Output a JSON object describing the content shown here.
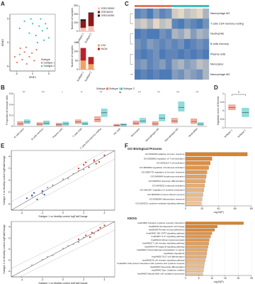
{
  "chart_data": [
    {
      "type": "scatter",
      "panel": "A",
      "xlabel": "tSNE1",
      "ylabel": "tSNE2",
      "legend_title": "Subtype",
      "xlim": [
        -7,
        7
      ],
      "ylim": [
        -6,
        6
      ],
      "xticks": [
        -5,
        0,
        5
      ],
      "yticks": [
        -5,
        0,
        5
      ],
      "series": [
        {
          "name": "Subtype 1",
          "color": "#e8735a",
          "x": [
            -5.5,
            -4.8,
            -4,
            -3.2,
            -2.5,
            -1.8,
            -1,
            -0.2,
            0.5,
            1.2,
            -3.8,
            -2
          ],
          "y": [
            -3,
            -4.2,
            -2.5,
            -3.6,
            -2,
            -4.5,
            -3,
            -2.2,
            -3.8,
            -1.5,
            -1.2,
            -1
          ]
        },
        {
          "name": "Subtype 2",
          "color": "#3bbfbf",
          "x": [
            -4,
            -2.5,
            -1,
            0,
            1,
            2,
            3,
            4,
            5,
            3.5,
            1.5,
            -0.5,
            2.5,
            4.5
          ],
          "y": [
            3,
            4.5,
            2,
            4,
            1.5,
            3.5,
            2.5,
            4,
            1,
            0.5,
            0,
            5,
            5,
            3
          ]
        }
      ]
    },
    {
      "type": "stacked_bar",
      "ylabel": "Number of samples",
      "categories": [
        "Subtype 1",
        "Subtype 2"
      ],
      "ylim": [
        0,
        300
      ],
      "yticks": [
        0,
        100,
        200,
        300
      ],
      "series": [
        {
          "name": "GSE135052",
          "color": "#f6c3b7",
          "values": [
            40,
            60
          ]
        },
        {
          "name": "GSE46224",
          "color": "#8b1a1a",
          "values": [
            80,
            150
          ]
        },
        {
          "name": "GSE116250",
          "color": "#1a1a1a",
          "values": [
            20,
            10
          ]
        }
      ]
    },
    {
      "type": "stacked_bar",
      "ylabel": "Number of samples",
      "categories": [
        "Subtype 1",
        "Subtype 2"
      ],
      "ylim": [
        0,
        150
      ],
      "yticks": [
        0,
        50,
        100,
        150
      ],
      "series": [
        {
          "name": "ICM",
          "color": "#f4a261",
          "values": [
            50,
            30
          ]
        },
        {
          "name": "NICM",
          "color": "#b5242a",
          "values": [
            70,
            40
          ]
        }
      ]
    },
    {
      "type": "heatmap",
      "panel": "C",
      "color_low": "#3a6fb5",
      "color_high": "#f6e3c8",
      "rows": [
        "Macrophage M2",
        "T cells CD4 memory resting",
        "Neutrophils",
        "B cells memory",
        "Plasma cells",
        "Monocytes",
        "Macrophage M0"
      ],
      "values": [
        [
          0.2,
          0.3,
          0.1,
          0.4,
          0.2,
          0.3,
          0.8,
          0.9,
          0.7,
          0.8,
          0.9,
          0.6
        ],
        [
          0.7,
          0.8,
          0.6,
          0.9,
          0.7,
          0.8,
          0.2,
          0.1,
          0.3,
          0.2,
          0.1,
          0.3
        ],
        [
          0.1,
          0.2,
          0.1,
          0.1,
          0.3,
          0.2,
          0.6,
          0.5,
          0.7,
          0.4,
          0.6,
          0.5
        ],
        [
          0.3,
          0.2,
          0.4,
          0.3,
          0.2,
          0.3,
          0.2,
          0.3,
          0.1,
          0.2,
          0.3,
          0.2
        ],
        [
          0.2,
          0.1,
          0.2,
          0.3,
          0.1,
          0.2,
          0.2,
          0.1,
          0.2,
          0.1,
          0.2,
          0.1
        ],
        [
          0.3,
          0.4,
          0.2,
          0.3,
          0.4,
          0.2,
          0.5,
          0.6,
          0.4,
          0.5,
          0.7,
          0.6
        ],
        [
          0.1,
          0.2,
          0.1,
          0.2,
          0.1,
          0.1,
          0.4,
          0.3,
          0.5,
          0.4,
          0.3,
          0.6
        ]
      ]
    },
    {
      "type": "box",
      "panel": "B",
      "ylabel": "Proportion of immune cells",
      "legend_title": "Subtype",
      "ylim": [
        0,
        0.6
      ],
      "yticks": [
        0,
        0.2,
        0.4,
        0.6
      ],
      "categories": [
        "B cells naive",
        "B cells memory",
        "Plasma cells",
        "T cells CD8",
        "T cells CD4 memory resting",
        "NK cells",
        "Monocytes",
        "Macrophages M0",
        "Macrophages M2",
        "Neutrophils"
      ],
      "significance": [
        "***",
        "***",
        "*",
        "**",
        "***",
        "ns",
        "***",
        "***",
        "***",
        "***"
      ],
      "series": [
        {
          "name": "Subtype 1",
          "color": "#e8735a",
          "median": [
            0.05,
            0.04,
            0.03,
            0.08,
            0.12,
            0.02,
            0.06,
            0.05,
            0.1,
            0.09
          ],
          "q1": [
            0.02,
            0.02,
            0.01,
            0.05,
            0.08,
            0.01,
            0.03,
            0.02,
            0.06,
            0.05
          ],
          "q3": [
            0.09,
            0.07,
            0.06,
            0.12,
            0.18,
            0.04,
            0.1,
            0.09,
            0.15,
            0.14
          ]
        },
        {
          "name": "Subtype 2",
          "color": "#3bbfbf",
          "median": [
            0.08,
            0.06,
            0.05,
            0.05,
            0.25,
            0.03,
            0.1,
            0.15,
            0.35,
            0.04
          ],
          "q1": [
            0.05,
            0.03,
            0.02,
            0.03,
            0.18,
            0.01,
            0.06,
            0.1,
            0.28,
            0.02
          ],
          "q3": [
            0.12,
            0.1,
            0.08,
            0.08,
            0.32,
            0.05,
            0.15,
            0.22,
            0.45,
            0.07
          ]
        }
      ]
    },
    {
      "type": "box",
      "panel": "D",
      "ylabel": "Signature score of fibrosis",
      "annotation": "*",
      "ylim": [
        -1,
        1
      ],
      "yticks": [
        -1,
        -0.5,
        0,
        0.5,
        1
      ],
      "categories": [
        "Subtype 1",
        "Subtype 2"
      ],
      "series": [
        {
          "color": "#e8735a",
          "median": [
            0.2,
            null
          ],
          "q1": [
            0.05,
            null
          ],
          "q3": [
            0.35,
            null
          ]
        },
        {
          "color": "#3bbfbf",
          "median": [
            null,
            -0.1
          ],
          "q1": [
            null,
            -0.35
          ],
          "q3": [
            null,
            0.15
          ]
        }
      ]
    },
    {
      "type": "scatter",
      "panel": "E",
      "diagonal": true,
      "xlabel": "Subtype 1 vs Healthy control logFoldChange",
      "ylabel": "Subtype 2 vs Healthy control logFoldChange",
      "xlim": [
        -5,
        5
      ],
      "ylim": [
        -5,
        5
      ],
      "xticks": [
        -4,
        -2,
        0,
        2,
        4
      ],
      "yticks": [
        -4,
        -2,
        0,
        2,
        4
      ],
      "series": [
        {
          "color": "#9e9e9e",
          "x": [
            -3,
            -2,
            -1,
            0,
            1,
            2,
            3,
            -1.5,
            0.5,
            1.5
          ],
          "y": [
            -2.7,
            -2.2,
            -0.8,
            0.2,
            1.1,
            1.8,
            3.2,
            -1.2,
            0.3,
            1.6
          ]
        },
        {
          "color": "#d7301f",
          "x": [
            1.5,
            2,
            2.5,
            3,
            3.5,
            4,
            2.2,
            3.2
          ],
          "y": [
            2,
            2.6,
            2.2,
            3.4,
            3.1,
            4.2,
            3,
            2.8
          ]
        },
        {
          "color": "#2b4fb5",
          "x": [
            -3.5,
            -3,
            -2.5,
            -2,
            -2.8,
            -1.8
          ],
          "y": [
            -3,
            -2.5,
            -3.2,
            -1.8,
            -2.1,
            -2.4
          ]
        }
      ]
    },
    {
      "type": "scatter",
      "diagonal": true,
      "xlabel": "Subtype 1 vs Healthy control logFoldChange",
      "ylabel": "Subtype 2 vs Healthy control logFoldChange",
      "xlim": [
        -5,
        5
      ],
      "ylim": [
        -5,
        5
      ],
      "xticks": [
        -4,
        -2,
        0,
        2,
        4
      ],
      "yticks": [
        -4,
        -2,
        0,
        2,
        4
      ],
      "series": [
        {
          "color": "#9e9e9e",
          "x": [
            -3,
            -2,
            -1,
            0,
            1,
            2,
            3,
            -1.5,
            0.5,
            1.5
          ],
          "y": [
            -2.9,
            -1.9,
            -1.1,
            0.1,
            0.9,
            2.1,
            2.8,
            -1.4,
            0.6,
            1.3
          ]
        },
        {
          "color": "#d7301f",
          "x": [
            1.5,
            2.2,
            2.8,
            3.4,
            4,
            2.6,
            3.6
          ],
          "y": [
            1.8,
            2.5,
            3,
            3.4,
            4.3,
            2.2,
            3.9
          ]
        }
      ]
    },
    {
      "type": "hbar",
      "panel": "F",
      "title": "GO Biological Process",
      "xlabel": "-log10(P)",
      "color": "#d9822b",
      "xlim": [
        0,
        80
      ],
      "xticks": [
        0,
        20,
        40,
        60,
        80
      ],
      "categories": [
        "GO:0002250 adaptive immune response",
        "GO:0050863 regulation of T cell activation",
        "GO:0042110 T cell activation",
        "GO:0002694 regulation of leukocyte activation",
        "GO:0050776 regulation of immune response",
        "GO:0046649 lymphocyte activation",
        "GO:0002521 leukocyte differentiation",
        "GO:0045321 leukocyte activation",
        "GO:0001817 regulation of cytokine production",
        "GO:0002252 immune effector process",
        "GO:0006954 inflammatory response",
        "GO:0019221 cytokine-mediated signaling pathway"
      ],
      "values": [
        75,
        32,
        30,
        28,
        26,
        25,
        24,
        23,
        22,
        21,
        20,
        19
      ]
    },
    {
      "type": "hbar",
      "title": "KEGG",
      "xlabel": "-log10(P)",
      "color": "#d9822b",
      "xlim": [
        0,
        25
      ],
      "xticks": [
        0,
        5,
        10,
        15,
        20,
        25
      ],
      "categories": [
        "hsa04060 Cytokine-cytokine receptor interaction",
        "hsa04640 Hematopoietic cell lineage",
        "hsa05340 Primary immunodeficiency",
        "hsa04630 JAK-STAT signaling pathway",
        "hsa04657 IL-17 signaling pathway",
        "hsa05143 African trypanosomiasis",
        "hsa04660 T cell receptor signaling pathway",
        "hsa04064 NF-kappa B signaling pathway",
        "hsa05202 Transcriptional misregulation in cancer",
        "hsa05161 Hepatitis B",
        "hsa04659 Th17 cell differentiation",
        "hsa04662 B cell receptor signaling pathway",
        "hsa04061 Viral protein interaction with cytokine and cytokine receptor",
        "hsa04380 Osteoclast differentiation",
        "hsa04940 Type I diabetes mellitus",
        "hsa04650 Natural killer cell mediated cytotoxicity"
      ],
      "values": [
        22,
        12,
        11,
        10,
        9.5,
        9,
        8.8,
        8.5,
        8.2,
        8,
        7.8,
        7.5,
        7.2,
        7,
        6.8,
        6.5
      ]
    }
  ]
}
